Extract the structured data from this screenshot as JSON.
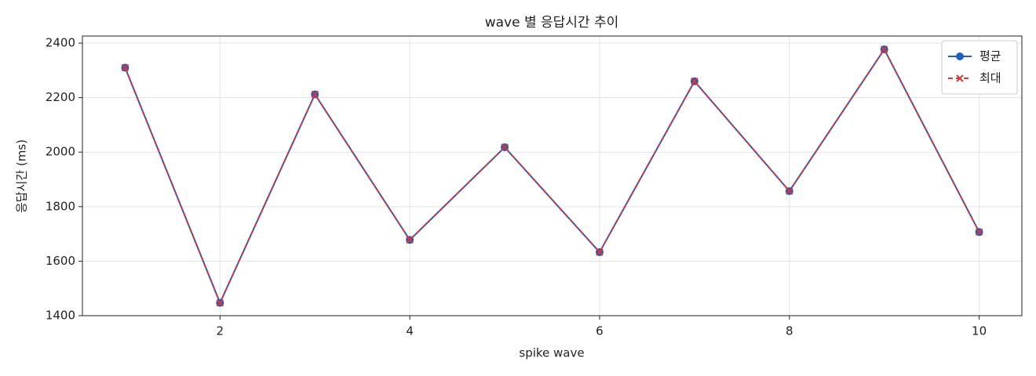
{
  "chart_data": {
    "type": "line",
    "title": "wave 별 응답시간 추이",
    "x_label": "spike wave",
    "y_label": "응답시간 (ms)",
    "x": [
      1,
      2,
      3,
      4,
      5,
      6,
      7,
      8,
      9,
      10
    ],
    "series": [
      {
        "name": "평균",
        "color": "#1f5fbf",
        "marker": "o",
        "dashed": false,
        "values": [
          2310,
          1447,
          2212,
          1678,
          2018,
          1633,
          2260,
          1857,
          2377,
          1707
        ]
      },
      {
        "name": "최대",
        "color": "#d0393b",
        "marker": "x",
        "dashed": true,
        "values": [
          2310,
          1447,
          2212,
          1678,
          2018,
          1633,
          2260,
          1857,
          2377,
          1707
        ]
      }
    ],
    "xlim": [
      0.55,
      10.45
    ],
    "xticks": [
      2,
      4,
      6,
      8,
      10
    ],
    "ylim": [
      1400,
      2426
    ],
    "yticks": [
      1400,
      1600,
      1800,
      2000,
      2200,
      2400
    ],
    "grid": true,
    "legend": "upper right"
  }
}
